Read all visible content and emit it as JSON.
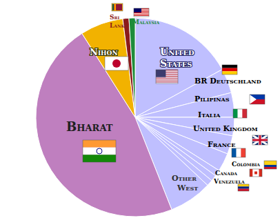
{
  "chart_data": {
    "type": "pie",
    "categories": [
      "United States",
      "BR Deutschland",
      "Pilipinas",
      "Italia",
      "United Kingdom",
      "France",
      "Colombia",
      "Canada",
      "Venezuela",
      "Other West",
      "Bharat",
      "Nihon",
      "Sri Lanka",
      "Malaysia"
    ],
    "values": [
      17,
      4,
      4,
      3,
      3,
      3,
      1,
      1,
      1,
      7,
      47,
      7,
      1,
      1
    ],
    "colors": [
      "#bfbfff",
      "#bfbfff",
      "#bfbfff",
      "#bfbfff",
      "#bfbfff",
      "#bfbfff",
      "#bfbfff",
      "#bfbfff",
      "#bfbfff",
      "#bfbfff",
      "#bf7fbf",
      "#f2b200",
      "#8b1a1a",
      "#1e8c3a"
    ]
  }
}
